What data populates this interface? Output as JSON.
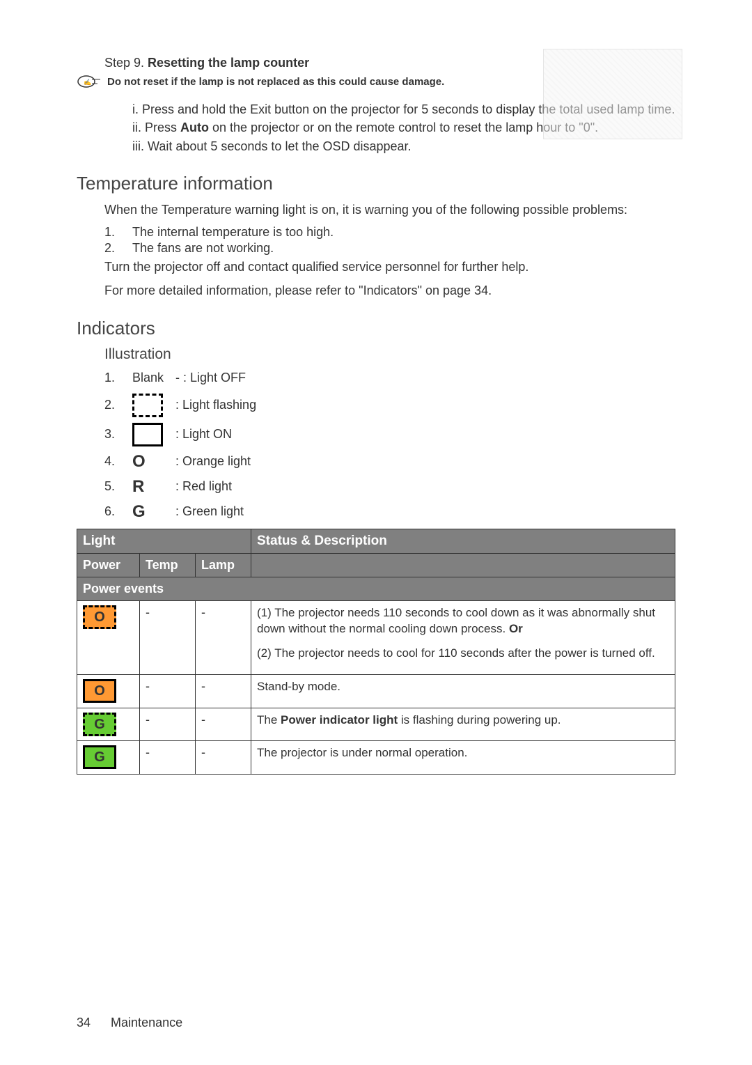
{
  "step": {
    "prefix": "Step 9. ",
    "title": "Resetting the lamp counter"
  },
  "note": {
    "icon_name": "note-hand-icon",
    "text": "Do not reset if the lamp is not replaced as this could cause damage."
  },
  "instructions": {
    "i_a": "i. Press and hold the Exit ",
    "i_b": " button on the projector for 5 seconds to display the total used lamp time.",
    "ii_a": "ii. Press ",
    "ii_bold": "Auto",
    "ii_b": " on the projector or on the remote control to reset the lamp hour to \"0\".",
    "iii": "iii. Wait about 5 seconds to let the OSD disappear."
  },
  "temperature": {
    "heading": "Temperature information",
    "intro": "When the Temperature warning light is on, it is warning you of the following possible problems:",
    "item1": "The internal temperature is too high.",
    "item2": "The fans are not working.",
    "turnoff": "Turn the projector off and contact qualified service personnel for further help.",
    "ref": "For more detailed information, please refer to \"Indicators\" on page 34."
  },
  "indicators": {
    "heading": "Indicators",
    "illus_heading": "Illustration",
    "items": [
      {
        "n": "1.",
        "sym": "Blank",
        "lab": "- : Light OFF"
      },
      {
        "n": "2.",
        "sym": "flash-box",
        "lab": ": Light flashing"
      },
      {
        "n": "3.",
        "sym": "on-box",
        "lab": ": Light ON"
      },
      {
        "n": "4.",
        "sym": "O",
        "lab": ": Orange light"
      },
      {
        "n": "5.",
        "sym": "R",
        "lab": ": Red light"
      },
      {
        "n": "6.",
        "sym": "G",
        "lab": ": Green light"
      }
    ]
  },
  "table": {
    "header_light": "Light",
    "header_status": "Status & Description",
    "col_power": "Power",
    "col_temp": "Temp",
    "col_lamp": "Lamp",
    "section1": "Power events",
    "rows": [
      {
        "power": {
          "letter": "O",
          "color": "orange",
          "flash": true
        },
        "temp": "-",
        "lamp": "-",
        "desc_lines": [
          "(1) The projector needs 110 seconds to cool down as it was abnormally shut down without the normal cooling down process. Or",
          "(2) The projector needs to cool for 110 seconds after the power is turned off."
        ]
      },
      {
        "power": {
          "letter": "O",
          "color": "orange",
          "flash": false
        },
        "temp": "-",
        "lamp": "-",
        "desc_lines": [
          "Stand-by mode."
        ]
      },
      {
        "power": {
          "letter": "G",
          "color": "green",
          "flash": true
        },
        "temp": "-",
        "lamp": "-",
        "desc_lines_rich": [
          {
            "pre": "The ",
            "bold": "Power indicator light",
            "post": " is flashing during powering up."
          }
        ]
      },
      {
        "power": {
          "letter": "G",
          "color": "green",
          "flash": false
        },
        "temp": "-",
        "lamp": "-",
        "desc_lines": [
          "The projector is under normal operation."
        ]
      }
    ]
  },
  "footer": {
    "page": "34",
    "section": "Maintenance"
  }
}
